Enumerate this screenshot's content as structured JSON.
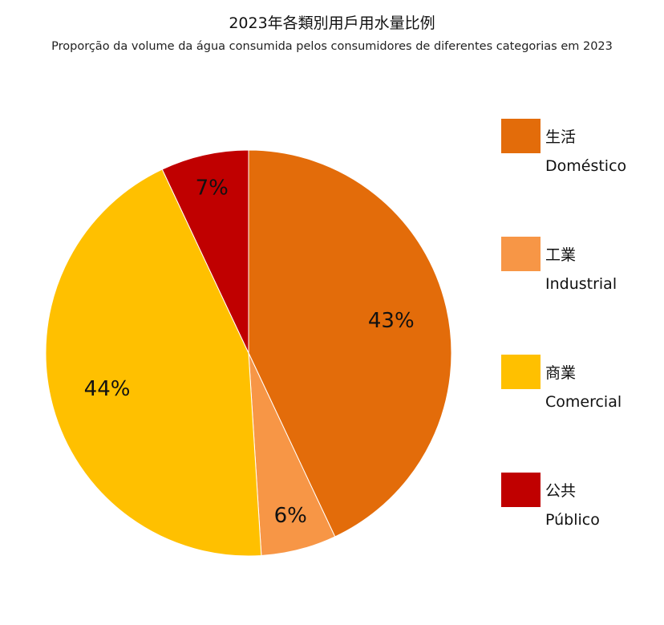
{
  "chart_data": {
    "type": "pie",
    "title": "2023年各類別用戶用水量比例",
    "subtitle": "Proporção da volume da água consumida pelos consumidores de diferentes categorias em 2023",
    "slices": [
      {
        "name_zh": "生活",
        "name_pt": "Doméstico",
        "value": 43,
        "label": "43%",
        "color": "#E36C0A"
      },
      {
        "name_zh": "工業",
        "name_pt": "Industrial",
        "value": 6,
        "label": "6%",
        "color": "#F79646"
      },
      {
        "name_zh": "商業",
        "name_pt": "Comercial",
        "value": 44,
        "label": "44%",
        "color": "#FFC000"
      },
      {
        "name_zh": "公共",
        "name_pt": "Público",
        "value": 7,
        "label": "7%",
        "color": "#C00000"
      }
    ],
    "start_angle": "12 o'clock",
    "direction": "clockwise",
    "legend_position": "right"
  }
}
